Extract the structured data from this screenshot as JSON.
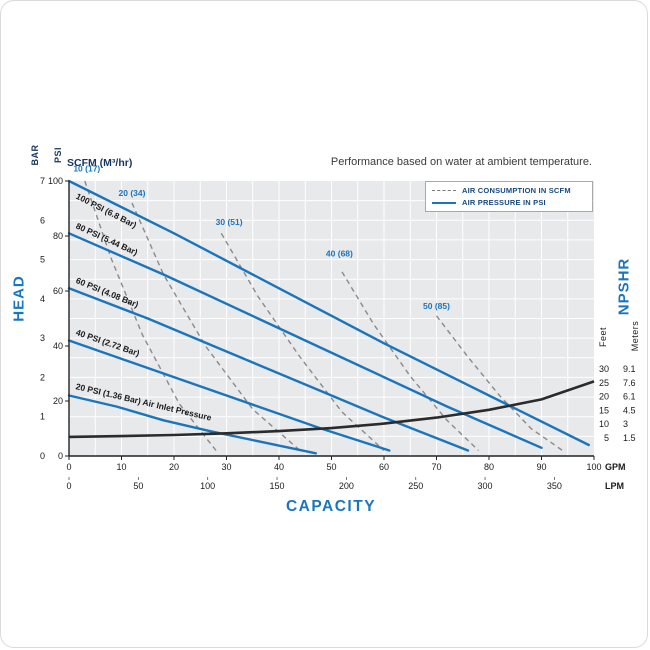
{
  "header": {
    "scfm_label": "SCFM (M³/hr)",
    "note": "Performance based on water at ambient temperature."
  },
  "legend": {
    "items": [
      {
        "label": "AIR CONSUMPTION IN SCFM",
        "style": "dashed"
      },
      {
        "label": "AIR PRESSURE IN PSI",
        "style": "solid"
      }
    ]
  },
  "axes": {
    "left_title": "HEAD",
    "left_units": [
      "BAR",
      "PSI"
    ],
    "bottom_title": "CAPACITY",
    "bottom_units": [
      "GPM",
      "LPM"
    ],
    "right_title": "NPSHR",
    "right_units": [
      "Feet",
      "Meters"
    ]
  },
  "chart_data": {
    "type": "line",
    "title": "Performance based on water at ambient temperature.",
    "grid": true,
    "legend_position": "top-right",
    "legend": [
      "AIR CONSUMPTION IN SCFM",
      "AIR PRESSURE IN PSI"
    ],
    "x_axis": {
      "label": "CAPACITY",
      "gpm_ticks": [
        0,
        10,
        20,
        30,
        40,
        50,
        60,
        70,
        80,
        90,
        100
      ],
      "gpm_unit": "GPM",
      "lpm_ticks": [
        0,
        50,
        100,
        150,
        200,
        250,
        300,
        350
      ],
      "lpm_unit": "LPM",
      "range_gpm": [
        0,
        100
      ]
    },
    "y_axis": {
      "label": "HEAD",
      "psi_ticks": [
        0,
        20,
        40,
        60,
        80,
        100
      ],
      "bar_ticks": [
        0,
        1,
        2,
        3,
        4,
        5,
        6,
        7
      ],
      "range_psi": [
        0,
        100
      ],
      "range_bar": [
        0,
        7
      ]
    },
    "right_axis": {
      "label": "NPSHR",
      "feet_ticks": [
        30,
        25,
        20,
        15,
        10,
        5
      ],
      "meters_ticks": [
        "9.1",
        "7.6",
        "6.1",
        "4.5",
        "3",
        "1.5"
      ],
      "range_feet": [
        5,
        30
      ]
    },
    "pressure_curves": [
      {
        "label": "100 PSI (6.8 Bar)",
        "label_below": true,
        "points": [
          [
            0,
            100
          ],
          [
            20,
            81
          ],
          [
            40,
            61
          ],
          [
            60,
            41
          ],
          [
            80,
            22
          ],
          [
            99,
            4
          ]
        ]
      },
      {
        "label": "80 PSI (5.44 Bar)",
        "points": [
          [
            0,
            81
          ],
          [
            18,
            66
          ],
          [
            36,
            50
          ],
          [
            54,
            34
          ],
          [
            72,
            18
          ],
          [
            90,
            3
          ]
        ]
      },
      {
        "label": "60 PSI (4.08 Bar)",
        "points": [
          [
            0,
            61
          ],
          [
            15,
            50
          ],
          [
            30,
            38
          ],
          [
            45,
            26
          ],
          [
            60,
            14
          ],
          [
            76,
            2
          ]
        ]
      },
      {
        "label": "40 PSI (2.72 Bar)",
        "points": [
          [
            0,
            42
          ],
          [
            12,
            34
          ],
          [
            24,
            26
          ],
          [
            36,
            18
          ],
          [
            48,
            10
          ],
          [
            61,
            2
          ]
        ]
      },
      {
        "label": "20 PSI (1.36 Bar) Air Inlet Pressure",
        "points": [
          [
            0,
            22
          ],
          [
            9,
            18
          ],
          [
            18,
            13
          ],
          [
            27,
            9
          ],
          [
            37,
            5
          ],
          [
            47,
            1
          ]
        ]
      }
    ],
    "air_consumption_curves": [
      {
        "label": "10 (17)",
        "label_pos": [
          3.4,
          103.5
        ],
        "points": [
          [
            3,
            100
          ],
          [
            8,
            72
          ],
          [
            14,
            44
          ],
          [
            21,
            19
          ],
          [
            28,
            2
          ]
        ]
      },
      {
        "label": "20 (34)",
        "label_pos": [
          12,
          94.5
        ],
        "points": [
          [
            12,
            92
          ],
          [
            18,
            66
          ],
          [
            26,
            40
          ],
          [
            35,
            17
          ],
          [
            44,
            2
          ]
        ]
      },
      {
        "label": "30 (51)",
        "label_pos": [
          30.5,
          84
        ],
        "points": [
          [
            29,
            81
          ],
          [
            36,
            58
          ],
          [
            44,
            36
          ],
          [
            52,
            16
          ],
          [
            60,
            2
          ]
        ]
      },
      {
        "label": "40 (68)",
        "label_pos": [
          51.5,
          72.5
        ],
        "points": [
          [
            52,
            67
          ],
          [
            58,
            48
          ],
          [
            65,
            29
          ],
          [
            72,
            13
          ],
          [
            78,
            2
          ]
        ]
      },
      {
        "label": "50 (85)",
        "label_pos": [
          70,
          53.5
        ],
        "points": [
          [
            70,
            51
          ],
          [
            76,
            36
          ],
          [
            82,
            22
          ],
          [
            88,
            10
          ],
          [
            94,
            2
          ]
        ]
      }
    ],
    "npshr_curve": {
      "name": "NPSHR",
      "units": "feet",
      "points_gpm_feet": [
        [
          0,
          5.4
        ],
        [
          10,
          5.7
        ],
        [
          20,
          6.1
        ],
        [
          30,
          6.7
        ],
        [
          40,
          7.5
        ],
        [
          50,
          8.6
        ],
        [
          60,
          10.2
        ],
        [
          70,
          12.4
        ],
        [
          80,
          15.2
        ],
        [
          90,
          19
        ],
        [
          100,
          25.5
        ]
      ]
    },
    "colors": {
      "blue": "#1b75bc",
      "air_dashed": "#8a8a8a",
      "black": "#2b2b2b",
      "plot_bg": "#e8e9ea",
      "grid": "#ffffff",
      "title_blue": "#1b75bc"
    }
  }
}
